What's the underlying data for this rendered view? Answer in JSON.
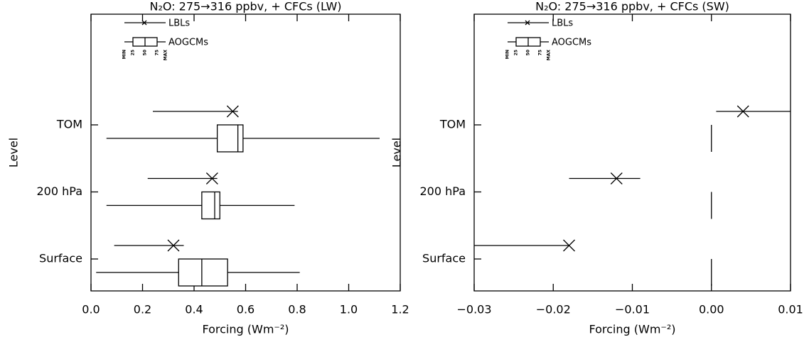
{
  "chart_data": [
    {
      "type": "box",
      "title": "N₂O: 275→316 ppbv, + CFCs (LW)",
      "xlabel": "Forcing (Wm⁻²)",
      "ylabel": "Level",
      "categories": [
        "TOM",
        "200 hPa",
        "Surface"
      ],
      "xlim": [
        0,
        1.2
      ],
      "xticks": [
        {
          "value": 0,
          "label": "0.0"
        },
        0.2,
        0.4,
        0.6,
        0.8,
        {
          "value": 1,
          "label": "1.0"
        },
        1.2
      ],
      "legend_scale": [
        "MIN",
        "25",
        "50",
        "75",
        "MAX"
      ],
      "series": [
        {
          "name": "LBLs",
          "color": "#000000",
          "min": [
            0.24,
            0.22,
            0.09
          ],
          "values": [
            0.55,
            0.47,
            0.32
          ],
          "max": [
            0.57,
            0.49,
            0.36
          ]
        },
        {
          "name": "AOGCMs",
          "color": "#000000",
          "min": [
            0.06,
            0.06,
            0.02
          ],
          "q1": [
            0.49,
            0.43,
            0.34
          ],
          "median": [
            0.57,
            0.48,
            0.43
          ],
          "q3": [
            0.59,
            0.5,
            0.53
          ],
          "max": [
            1.12,
            0.79,
            0.81
          ]
        }
      ]
    },
    {
      "type": "box",
      "title": "N₂O: 275→316 ppbv, + CFCs (SW)",
      "xlabel": "Forcing (Wm⁻²)",
      "ylabel": "Level",
      "categories": [
        "TOM",
        "200 hPa",
        "Surface"
      ],
      "xlim": [
        -0.03,
        0.01
      ],
      "xticks": [
        {
          "value": -0.03,
          "label": "−0.03"
        },
        {
          "value": -0.02,
          "label": "−0.02"
        },
        {
          "value": -0.01,
          "label": "−0.01"
        },
        {
          "value": 0,
          "label": "0.00"
        },
        0.01
      ],
      "legend_scale": [
        "MIN",
        "25",
        "50",
        "75",
        "MAX"
      ],
      "series": [
        {
          "name": "LBLs",
          "color": "#000000",
          "min": [
            0.0006,
            -0.018,
            -0.03
          ],
          "values": [
            0.004,
            -0.012,
            -0.018
          ],
          "max": [
            0.01,
            -0.009,
            -0.018
          ]
        },
        {
          "name": "AOGCMs",
          "color": "#000000",
          "min": [
            0,
            0,
            0
          ],
          "q1": [
            0,
            0,
            0
          ],
          "median": [
            0,
            0,
            0
          ],
          "q3": [
            0,
            0,
            0
          ],
          "max": [
            0,
            0,
            0
          ]
        }
      ]
    }
  ]
}
